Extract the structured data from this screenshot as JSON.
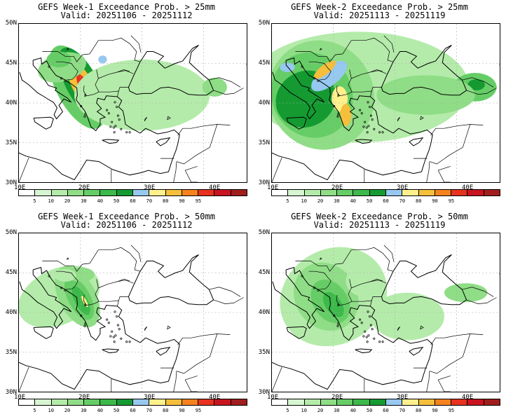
{
  "palette": [
    "#ffffff",
    "#d7f5d0",
    "#b4ebaa",
    "#8fdd86",
    "#66cd66",
    "#3cb94a",
    "#159a32",
    "#96c8f0",
    "#fff08c",
    "#f5bf3c",
    "#f5821e",
    "#e6321e",
    "#c8141e",
    "#a01e1e"
  ],
  "colorbar_labels": [
    "5",
    "10",
    "20",
    "30",
    "40",
    "50",
    "60",
    "70",
    "80",
    "90",
    "95"
  ],
  "lat_labels": [
    "50N",
    "45N",
    "40N",
    "35N",
    "30N"
  ],
  "lon_labels": [
    "10E",
    "20E",
    "30E",
    "40E"
  ],
  "panels": [
    {
      "title": "GEFS Week-1 Exceedance Prob. > 25mm",
      "valid": "Valid: 20251106 - 20251112"
    },
    {
      "title": "GEFS Week-2 Exceedance Prob. > 25mm",
      "valid": "Valid: 20251113 - 20251119"
    },
    {
      "title": "GEFS Week-1 Exceedance Prob. > 50mm",
      "valid": "Valid: 20251106 - 20251112"
    },
    {
      "title": "GEFS Week-2 Exceedance Prob. > 50mm",
      "valid": "Valid: 20251113 - 20251119"
    }
  ]
}
